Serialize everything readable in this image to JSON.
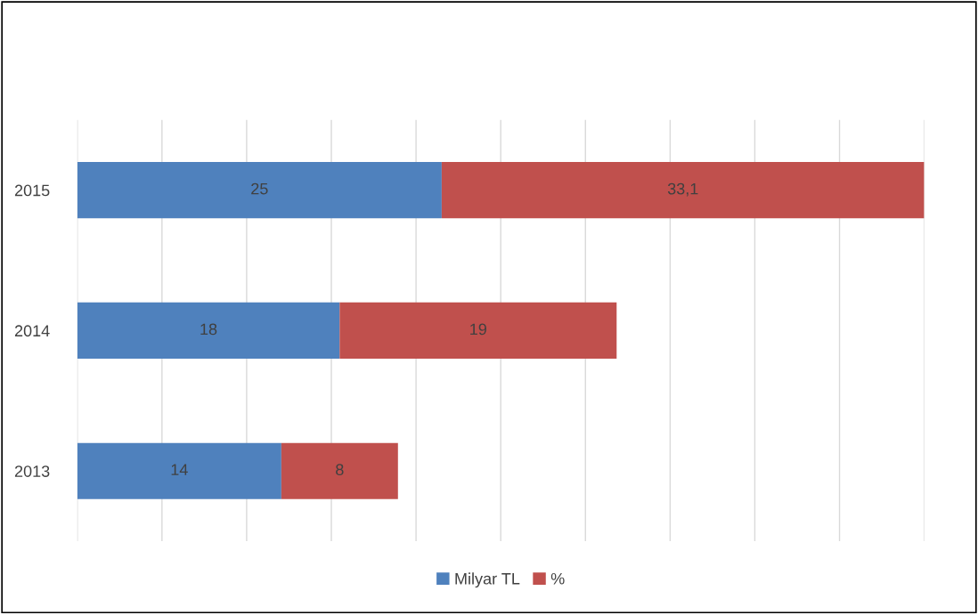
{
  "chart_data": {
    "type": "bar",
    "orientation": "horizontal",
    "stacked": true,
    "categories": [
      "2015",
      "2014",
      "2013"
    ],
    "series": [
      {
        "name": "Milyar TL",
        "color": "#4f81bd",
        "values": [
          25,
          18,
          14
        ]
      },
      {
        "name": "%",
        "color": "#c0504d",
        "values": [
          33.1,
          19,
          8
        ],
        "value_labels": [
          "33,1",
          "19",
          "8"
        ]
      }
    ],
    "data_labels": true,
    "grid": "x",
    "legend": "bottom"
  }
}
